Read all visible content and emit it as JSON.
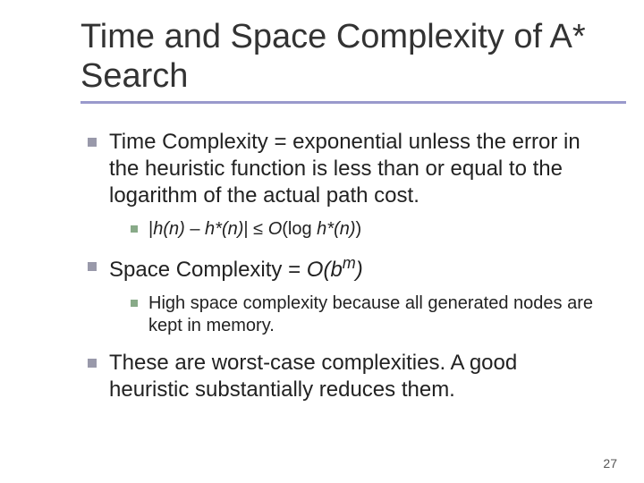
{
  "title": "Time and Space Complexity of A* Search",
  "bullets": {
    "b1": "Time Complexity = exponential unless the error in the heuristic function is less than or equal to the logarithm of the actual path cost.",
    "b1_1_prefix": "|",
    "b1_1_h": "h(n)",
    "b1_1_mid1": " –  ",
    "b1_1_hstar1": "h*(n)",
    "b1_1_mid2": "| ≤ ",
    "b1_1_O": "O",
    "b1_1_open": "(log ",
    "b1_1_hstar2": "h*(n)",
    "b1_1_close": ")",
    "b2_prefix": "Space Complexity = ",
    "b2_O": "O(b",
    "b2_m": "m",
    "b2_close": ")",
    "b2_1": "High space complexity because all generated nodes are kept in memory.",
    "b3": "These are worst-case complexities.  A good heuristic substantially reduces them."
  },
  "pageNumber": "27",
  "colors": {
    "title_rule": "#9999cc",
    "bullet_lvl1": "#9999aa",
    "bullet_lvl2": "#88aa88",
    "text": "#222222",
    "background": "#ffffff"
  },
  "fonts": {
    "title_size": 38,
    "lvl1_size": 24,
    "lvl2_size": 20,
    "pagenum_size": 14
  }
}
